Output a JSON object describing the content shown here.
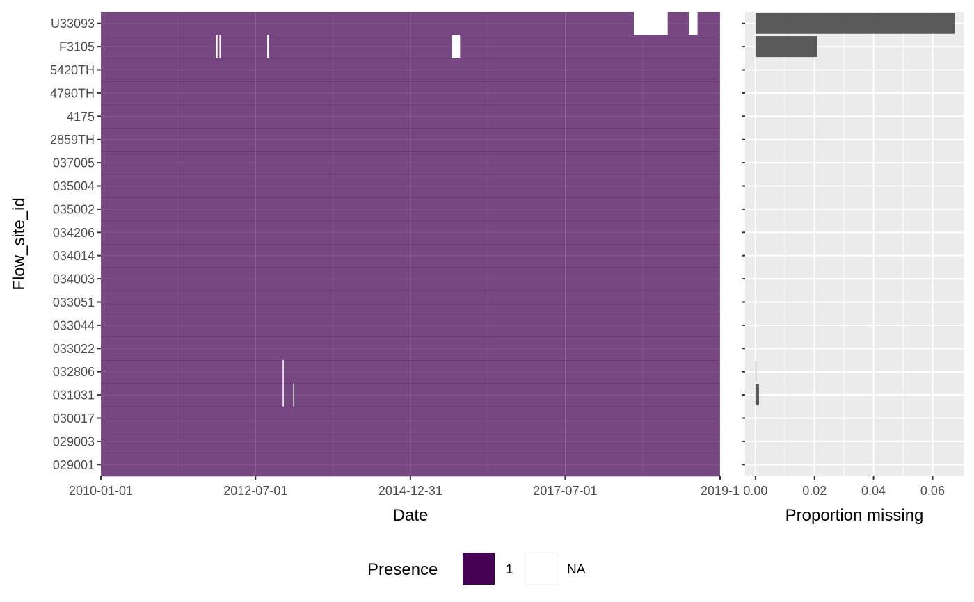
{
  "chart_data": [
    {
      "type": "heatmap",
      "x_axis": {
        "type": "date",
        "label": "Date",
        "range": [
          "2010-01-01",
          "2019-12-31"
        ],
        "ticks": [
          "2010-01-01",
          "2012-07-01",
          "2014-12-31",
          "2017-07-01",
          "2019-12-31"
        ],
        "tick_labels": [
          "2010-01-01",
          "2012-07-01",
          "2014-12-31",
          "2017-07-01",
          "2019-1"
        ]
      },
      "y_axis": {
        "label": "Flow_site_id",
        "categories": [
          "U33093",
          "F3105",
          "5420TH",
          "4790TH",
          "4175",
          "2859TH",
          "037005",
          "035004",
          "035002",
          "034206",
          "034014",
          "034003",
          "033051",
          "033044",
          "033022",
          "032806",
          "031031",
          "030017",
          "029003",
          "029001"
        ]
      },
      "fill_colors": {
        "present": "#440154",
        "missing": "#ffffff"
      },
      "fill_alpha": 0.7,
      "missing_intervals": [
        {
          "site": "U33093",
          "start": "2018-08-10",
          "end": "2019-02-25"
        },
        {
          "site": "U33093",
          "start": "2019-07-01",
          "end": "2019-08-20"
        },
        {
          "site": "F3105",
          "start": "2011-11-10",
          "end": "2011-11-20"
        },
        {
          "site": "F3105",
          "start": "2011-12-01",
          "end": "2011-12-08"
        },
        {
          "site": "F3105",
          "start": "2012-09-08",
          "end": "2012-09-18"
        },
        {
          "site": "F3105",
          "start": "2015-09-01",
          "end": "2015-10-20"
        },
        {
          "site": "032806",
          "start": "2012-12-08",
          "end": "2012-12-13"
        },
        {
          "site": "031031",
          "start": "2012-12-08",
          "end": "2012-12-13"
        },
        {
          "site": "031031",
          "start": "2013-02-08",
          "end": "2013-02-13"
        }
      ],
      "grid": true
    },
    {
      "type": "bar",
      "orientation": "horizontal",
      "categories": [
        "U33093",
        "F3105",
        "5420TH",
        "4790TH",
        "4175",
        "2859TH",
        "037005",
        "035004",
        "035002",
        "034206",
        "034014",
        "034003",
        "033051",
        "033044",
        "033022",
        "032806",
        "031031",
        "030017",
        "029003",
        "029001"
      ],
      "values": [
        0.0675,
        0.021,
        0,
        0,
        0,
        0,
        0,
        0,
        0,
        0,
        0,
        0,
        0,
        0,
        0,
        0.0003,
        0.0012,
        0,
        0,
        0
      ],
      "xlabel": "Proportion missing",
      "xlim": [
        -0.0035,
        0.0705
      ],
      "xticks": [
        0.0,
        0.02,
        0.04,
        0.06
      ],
      "xtick_labels": [
        "0.00",
        "0.02",
        "0.04",
        "0.06"
      ],
      "bar_color": "#595959",
      "panel_background": "#ebebeb",
      "grid": true
    }
  ],
  "legend": {
    "title": "Presence",
    "placement": "bottom",
    "items": [
      {
        "label": "1",
        "color": "#440154"
      },
      {
        "label": "NA",
        "color": "#ffffff"
      }
    ]
  }
}
